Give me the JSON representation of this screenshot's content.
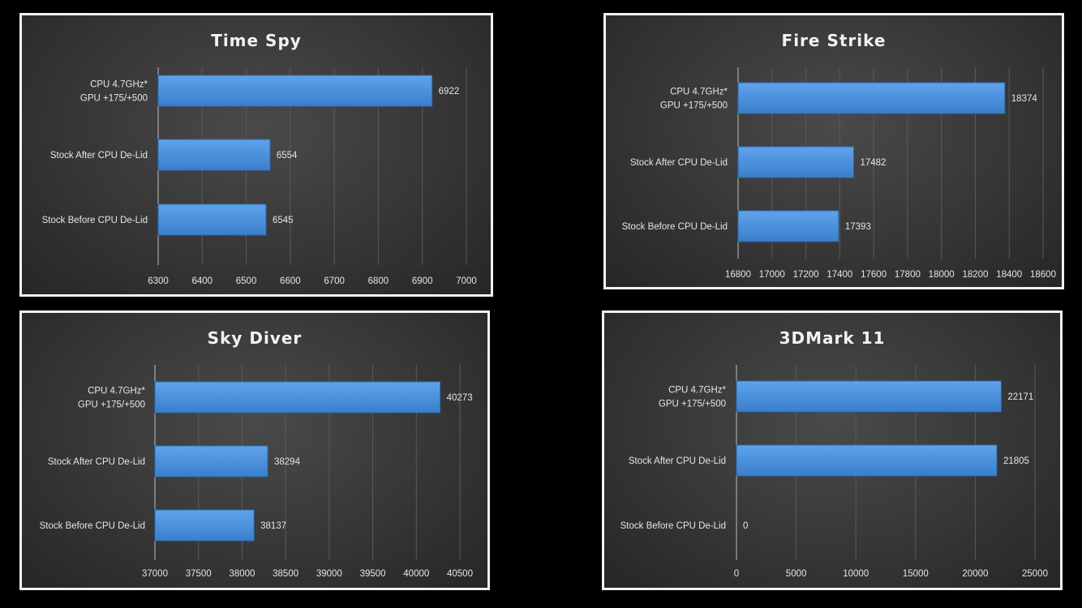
{
  "colors": {
    "background": "#000000",
    "panel_border": "#f2f2f2",
    "bar_fill": "#4a90d9",
    "text": "#e6e6e6"
  },
  "chart_data": [
    {
      "type": "bar",
      "orientation": "horizontal",
      "title": "Time Spy",
      "categories": [
        [
          "CPU 4.7GHz*",
          "GPU +175/+500"
        ],
        [
          "Stock After CPU De-Lid"
        ],
        [
          "Stock Before CPU De-Lid"
        ]
      ],
      "values": [
        6922,
        6554,
        6545
      ],
      "data_labels": [
        "6922",
        "6554",
        "6545"
      ],
      "xlim": [
        6300,
        7000
      ],
      "ticks": [
        "6300",
        "6400",
        "6500",
        "6600",
        "6700",
        "6800",
        "6900",
        "7000"
      ],
      "grid": true,
      "legend": "none"
    },
    {
      "type": "bar",
      "orientation": "horizontal",
      "title": "Fire Strike",
      "categories": [
        [
          "CPU 4.7GHz*",
          "GPU +175/+500"
        ],
        [
          "Stock After CPU De-Lid"
        ],
        [
          "Stock Before CPU De-Lid"
        ]
      ],
      "values": [
        18374,
        17482,
        17393
      ],
      "data_labels": [
        "18374",
        "17482",
        "17393"
      ],
      "xlim": [
        16800,
        18600
      ],
      "ticks": [
        "16800",
        "17000",
        "17200",
        "17400",
        "17600",
        "17800",
        "18000",
        "18200",
        "18400",
        "18600"
      ],
      "grid": true,
      "legend": "none"
    },
    {
      "type": "bar",
      "orientation": "horizontal",
      "title": "Sky Diver",
      "categories": [
        [
          "CPU 4.7GHz*",
          "GPU +175/+500"
        ],
        [
          "Stock After CPU De-Lid"
        ],
        [
          "Stock Before CPU De-Lid"
        ]
      ],
      "values": [
        40273,
        38294,
        38137
      ],
      "data_labels": [
        "40273",
        "38294",
        "38137"
      ],
      "xlim": [
        37000,
        40500
      ],
      "ticks": [
        "37000",
        "37500",
        "38000",
        "38500",
        "39000",
        "39500",
        "40000",
        "40500"
      ],
      "grid": true,
      "legend": "none"
    },
    {
      "type": "bar",
      "orientation": "horizontal",
      "title": "3DMark 11",
      "categories": [
        [
          "CPU 4.7GHz*",
          "GPU +175/+500"
        ],
        [
          "Stock After CPU De-Lid"
        ],
        [
          "Stock Before CPU De-Lid"
        ]
      ],
      "values": [
        22171,
        21805,
        0
      ],
      "data_labels": [
        "22171",
        "21805",
        "0"
      ],
      "xlim": [
        0,
        25000
      ],
      "ticks": [
        "0",
        "5000",
        "10000",
        "15000",
        "20000",
        "25000"
      ],
      "grid": true,
      "legend": "none"
    }
  ]
}
